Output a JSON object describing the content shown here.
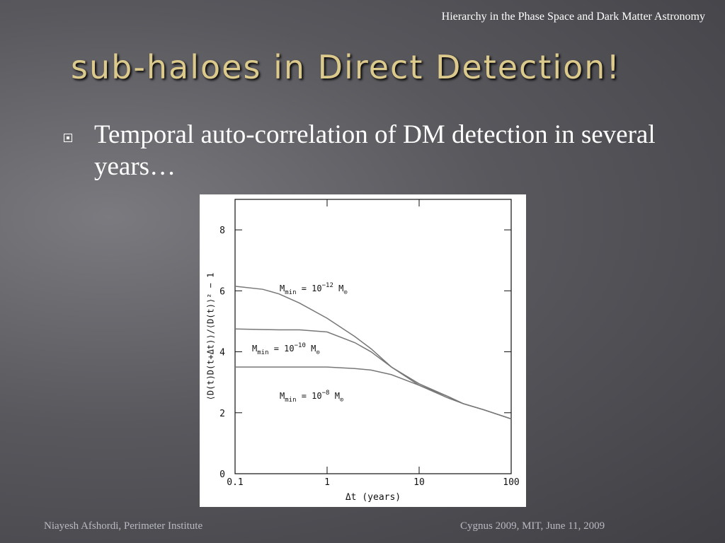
{
  "header": {
    "presentation": "Hierarchy in the Phase Space and Dark Matter Astronomy"
  },
  "title": "sub-haloes in Direct Detection!",
  "bullets": [
    "Temporal auto-correlation of DM detection in several years…"
  ],
  "chart_data": {
    "type": "line",
    "log_x": true,
    "x_label": "Δt (years)",
    "y_label": "⟨D(t)D(t+Δt)⟩/⟨D(t)⟩² − 1",
    "x": [
      0.1,
      0.2,
      0.3,
      0.5,
      1,
      2,
      3,
      5,
      10,
      20,
      30,
      50,
      100
    ],
    "series": [
      {
        "label_parts": [
          "M",
          "min",
          " = 10",
          "−12",
          " M",
          "⊙"
        ],
        "color": "#777777",
        "values": [
          6.15,
          6.05,
          5.9,
          5.6,
          5.1,
          4.5,
          4.1,
          3.5,
          2.9,
          2.55,
          2.3,
          2.1,
          1.8
        ]
      },
      {
        "label_parts": [
          "M",
          "min",
          " = 10",
          "−10",
          " M",
          "⊙"
        ],
        "color": "#777777",
        "values": [
          4.75,
          4.73,
          4.72,
          4.72,
          4.65,
          4.3,
          4.0,
          3.5,
          2.95,
          2.55,
          2.3,
          2.1,
          1.8
        ]
      },
      {
        "label_parts": [
          "M",
          "min",
          " = 10",
          "−8",
          " M",
          "⊙"
        ],
        "color": "#777777",
        "values": [
          3.5,
          3.5,
          3.5,
          3.5,
          3.5,
          3.45,
          3.4,
          3.25,
          2.9,
          2.5,
          2.3,
          2.1,
          1.8
        ]
      }
    ],
    "xlim": [
      0.1,
      100
    ],
    "xticks": [
      0.1,
      1,
      10,
      100
    ],
    "ylim": [
      0,
      9
    ],
    "yticks": [
      0,
      2,
      4,
      6,
      8
    ]
  },
  "footer": {
    "left": "Niayesh Afshordi, Perimeter Institute",
    "right": "Cygnus 2009,  MIT, June 11, 2009"
  }
}
